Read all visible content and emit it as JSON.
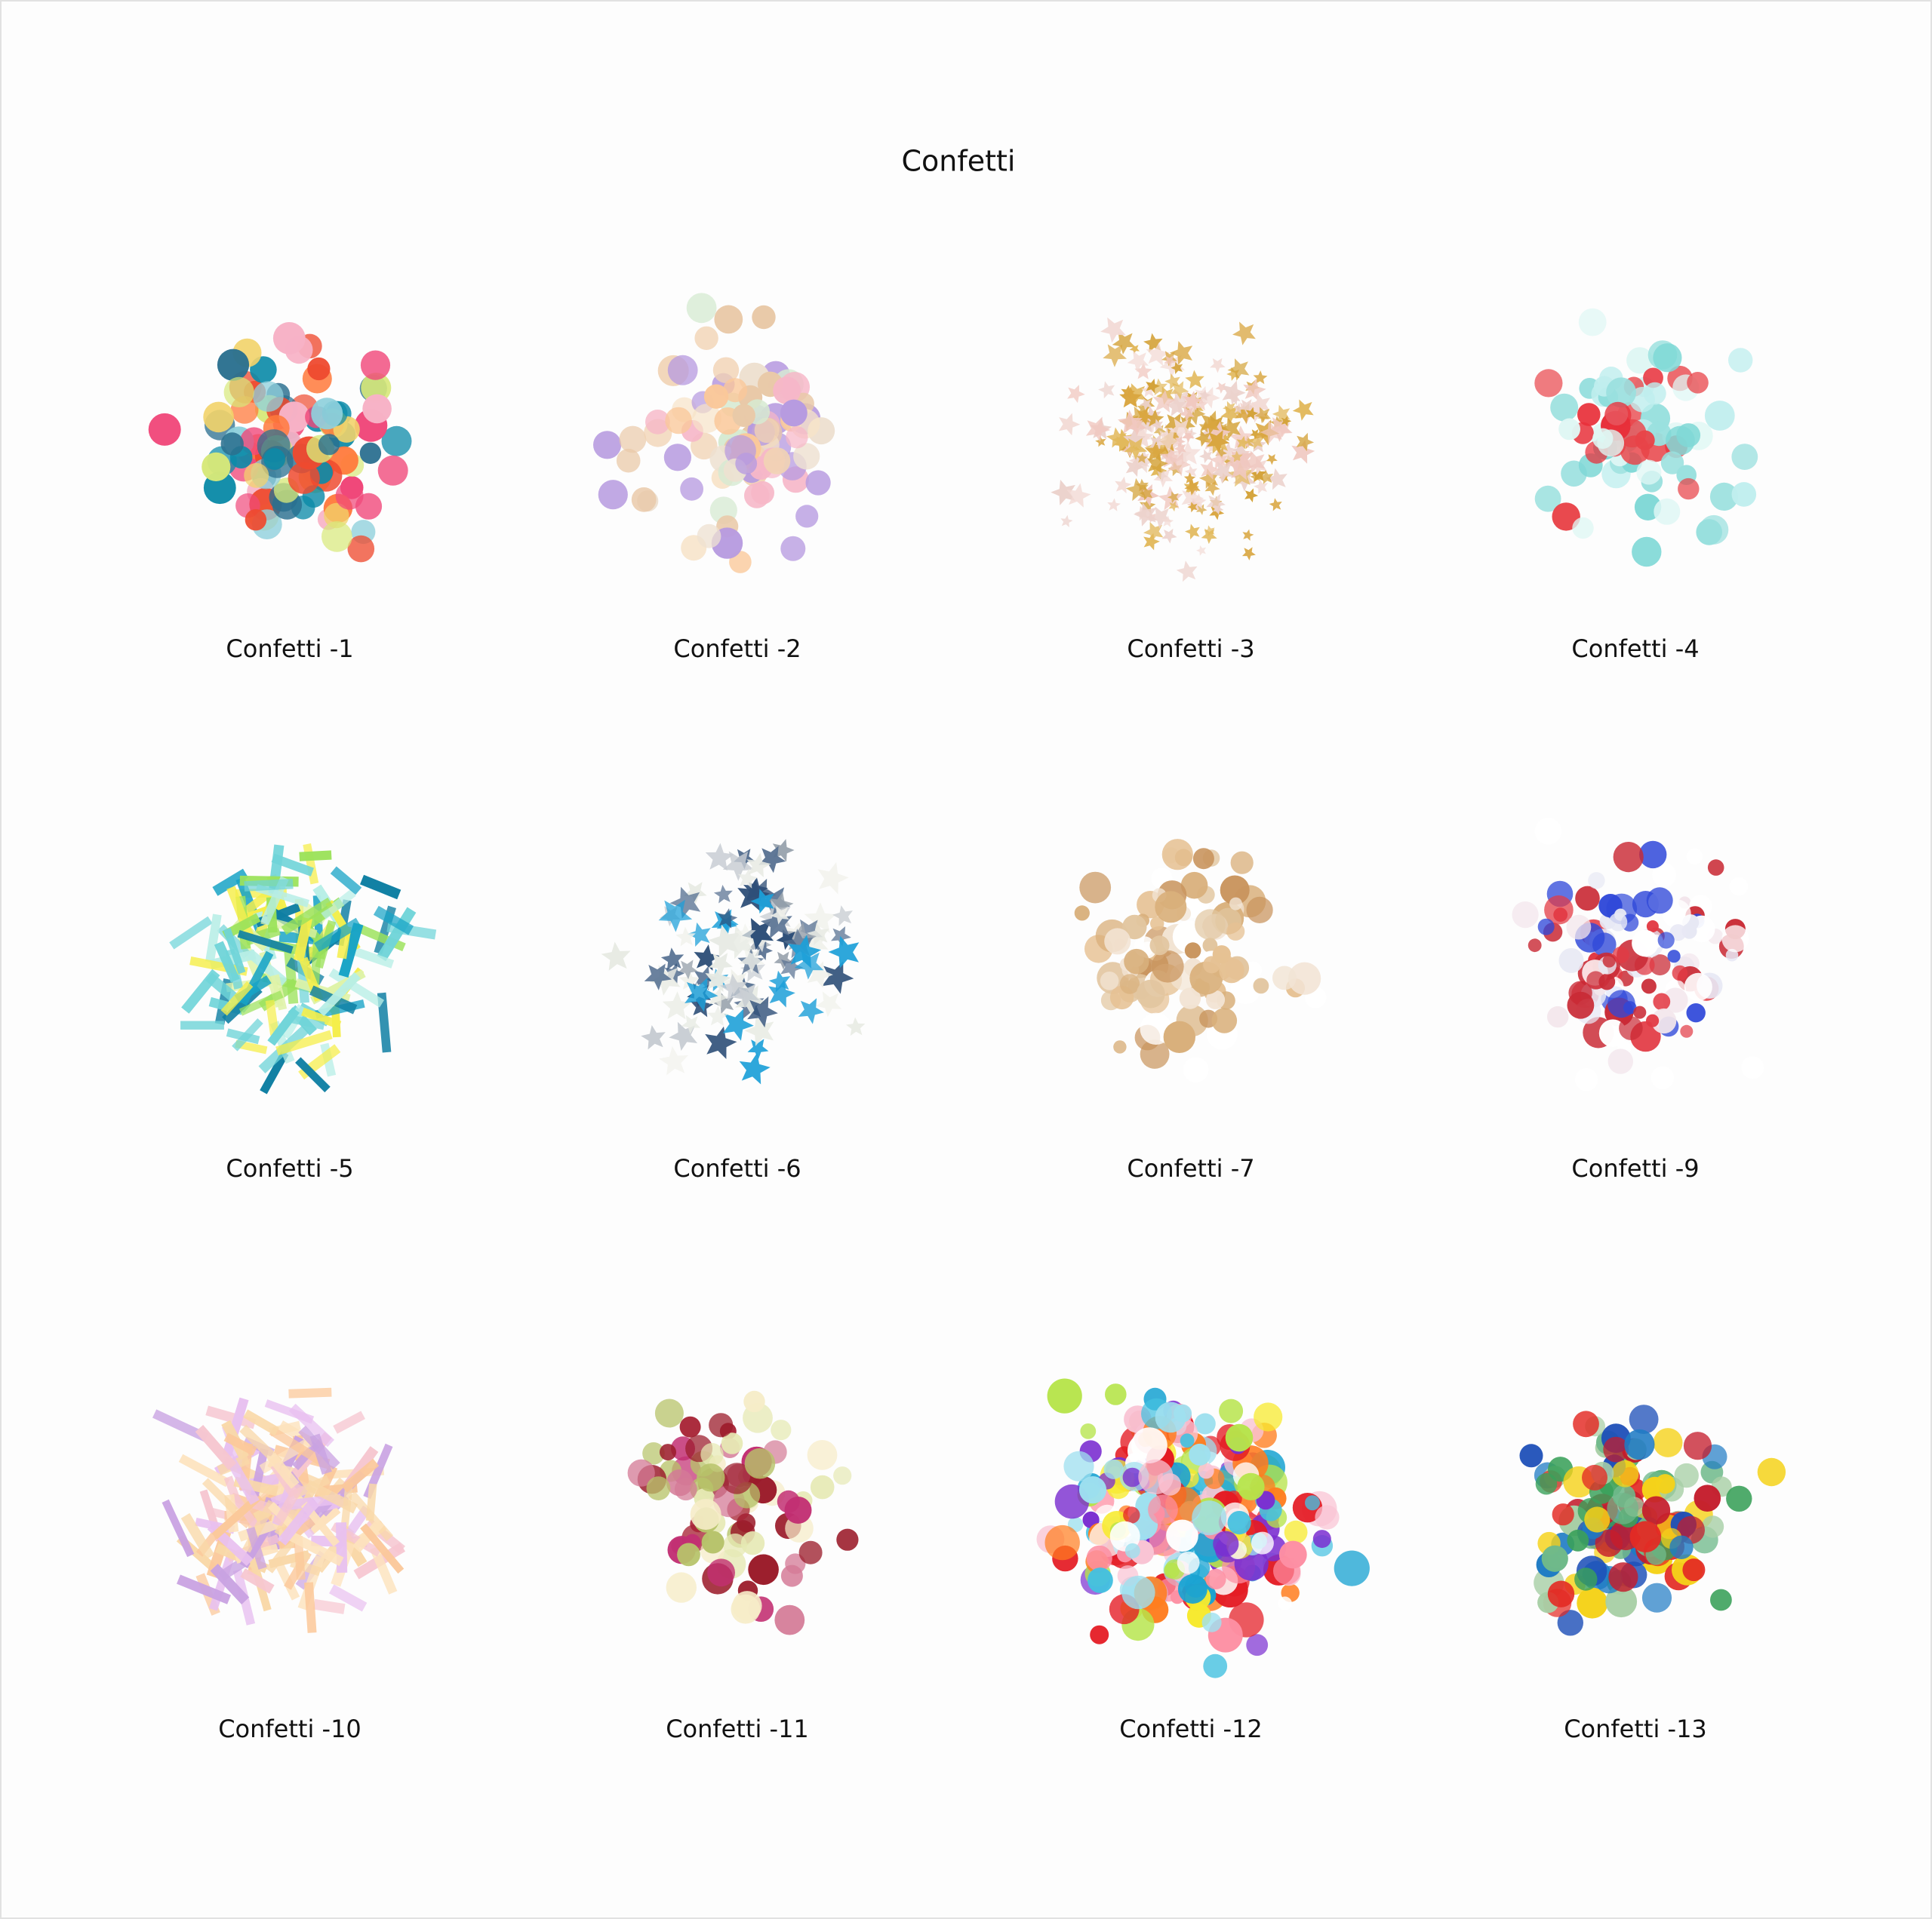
{
  "header": {
    "title": "Confetti"
  },
  "items": [
    {
      "label": "Confetti -1"
    },
    {
      "label": "Confetti -2"
    },
    {
      "label": "Confetti -3"
    },
    {
      "label": "Confetti -4"
    },
    {
      "label": "Confetti -5"
    },
    {
      "label": "Confetti -6"
    },
    {
      "label": "Confetti -7"
    },
    {
      "label": "Confetti -9"
    },
    {
      "label": "Confetti -10"
    },
    {
      "label": "Confetti -11"
    },
    {
      "label": "Confetti -12"
    },
    {
      "label": "Confetti -13"
    }
  ]
}
